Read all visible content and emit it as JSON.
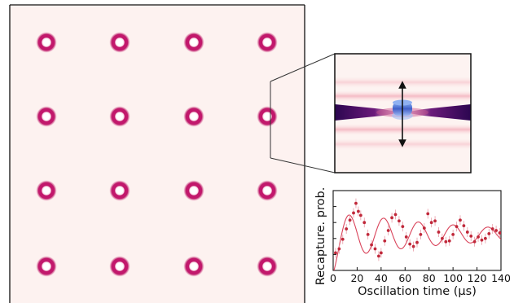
{
  "panel_labels": [],
  "lattice": {
    "rows": 4,
    "cols": 4,
    "background": "#fdf2f0",
    "ring_color": "#c2186c",
    "ring_highlight": "#ffffff"
  },
  "zoom_inset": {
    "beam_color": "#3a0a6a",
    "cloud_color": "#3a66d8",
    "arrow_color": "#111111"
  },
  "chart_data": {
    "type": "scatter",
    "title": "",
    "xlabel": "Oscillation time (μs)",
    "ylabel": "Recapture. prob.",
    "xlim": [
      0,
      140
    ],
    "x_ticks": [
      "0",
      "20",
      "40",
      "60",
      "80",
      "100",
      "120",
      "140"
    ],
    "y_ticks_labeled": false,
    "colors": {
      "points": "#c0283a",
      "fit": "#d9435a"
    },
    "series": [
      {
        "kind": "points",
        "x": [
          2,
          5,
          8,
          11,
          14,
          17,
          19,
          21,
          23,
          26,
          29,
          32,
          35,
          38,
          40,
          43,
          46,
          49,
          52,
          55,
          58,
          61,
          64,
          67,
          70,
          73,
          76,
          79,
          82,
          85,
          88,
          91,
          94,
          97,
          100,
          103,
          106,
          109,
          112,
          115,
          118,
          121,
          124,
          127,
          130,
          133,
          136,
          139
        ],
        "y": [
          0.22,
          0.27,
          0.39,
          0.52,
          0.63,
          0.72,
          0.84,
          0.74,
          0.69,
          0.6,
          0.45,
          0.32,
          0.27,
          0.18,
          0.22,
          0.37,
          0.5,
          0.66,
          0.7,
          0.62,
          0.55,
          0.42,
          0.33,
          0.3,
          0.35,
          0.45,
          0.53,
          0.71,
          0.6,
          0.62,
          0.48,
          0.4,
          0.36,
          0.37,
          0.45,
          0.55,
          0.63,
          0.56,
          0.48,
          0.43,
          0.36,
          0.42,
          0.38,
          0.4,
          0.46,
          0.52,
          0.5,
          0.47
        ]
      }
    ]
  }
}
